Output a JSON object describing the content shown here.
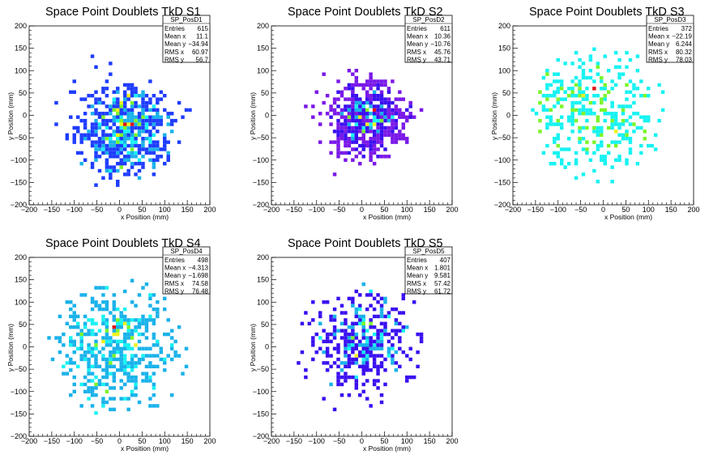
{
  "chart_data": [
    {
      "type": "heatmap",
      "title": "Space Point Doublets TkD S1",
      "xlabel": "x Position (mm)",
      "ylabel": "y Position (mm)",
      "xlim": [
        -200,
        200
      ],
      "ylim": [
        -200,
        200
      ],
      "xticks": [
        "−200",
        "−150",
        "−100",
        "−50",
        "0",
        "50",
        "100",
        "150",
        "200"
      ],
      "yticks": [
        "−200",
        "−150",
        "−100",
        "−50",
        "0",
        "50",
        "100",
        "150",
        "200"
      ],
      "stats": {
        "name": "SP_PosD1",
        "rows": [
          [
            "Entries",
            "615"
          ],
          [
            "Mean x",
            "11.1"
          ],
          [
            "Mean y",
            "−34.94"
          ],
          [
            "RMS x",
            "60.97"
          ],
          [
            "RMS y",
            "56.7"
          ]
        ]
      },
      "palette": "blue",
      "bins": {
        "n": 615,
        "mean_x": 11.1,
        "mean_y": -34.94,
        "rms_x": 60.97,
        "rms_y": 56.7,
        "radius": 160
      }
    },
    {
      "type": "heatmap",
      "title": "Space Point Doublets TkD S2",
      "xlabel": "x Position (mm)",
      "ylabel": "y Position (mm)",
      "xlim": [
        -200,
        200
      ],
      "ylim": [
        -200,
        200
      ],
      "xticks": [
        "−200",
        "−150",
        "−100",
        "−50",
        "0",
        "50",
        "100",
        "150",
        "200"
      ],
      "yticks": [
        "−200",
        "−150",
        "−100",
        "−50",
        "0",
        "50",
        "100",
        "150",
        "200"
      ],
      "stats": {
        "name": "SP_PosD2",
        "rows": [
          [
            "Entries",
            "611"
          ],
          [
            "Mean x",
            "10.36"
          ],
          [
            "Mean y",
            "−10.76"
          ],
          [
            "RMS x",
            "45.76"
          ],
          [
            "RMS y",
            "43.71"
          ]
        ]
      },
      "palette": "violet",
      "bins": {
        "n": 611,
        "mean_x": 10.36,
        "mean_y": -10.76,
        "rms_x": 45.76,
        "rms_y": 43.71,
        "radius": 160
      }
    },
    {
      "type": "heatmap",
      "title": "Space Point Doublets TkD S3",
      "xlabel": "x Position (mm)",
      "ylabel": "y Position (mm)",
      "xlim": [
        -200,
        200
      ],
      "ylim": [
        -200,
        200
      ],
      "xticks": [
        "−200",
        "−150",
        "−100",
        "−50",
        "0",
        "50",
        "100",
        "150",
        "200"
      ],
      "yticks": [
        "−200",
        "−150",
        "−100",
        "−50",
        "0",
        "50",
        "100",
        "150",
        "200"
      ],
      "stats": {
        "name": "SP_PosD3",
        "rows": [
          [
            "Entries",
            "372"
          ],
          [
            "Mean x",
            "−22.19"
          ],
          [
            "Mean y",
            "6.244"
          ],
          [
            "RMS x",
            "80.32"
          ],
          [
            "RMS y",
            "78.03"
          ]
        ]
      },
      "palette": "cyan",
      "bins": {
        "n": 372,
        "mean_x": -22.19,
        "mean_y": 6.244,
        "rms_x": 80.32,
        "rms_y": 78.03,
        "radius": 160
      }
    },
    {
      "type": "heatmap",
      "title": "Space Point Doublets TkD S4",
      "xlabel": "x Position (mm)",
      "ylabel": "y Position (mm)",
      "xlim": [
        -200,
        200
      ],
      "ylim": [
        -200,
        200
      ],
      "xticks": [
        "−200",
        "−150",
        "−100",
        "−50",
        "0",
        "50",
        "100",
        "150",
        "200"
      ],
      "yticks": [
        "−200",
        "−150",
        "−100",
        "−50",
        "0",
        "50",
        "100",
        "150",
        "200"
      ],
      "stats": {
        "name": "SP_PosD4",
        "rows": [
          [
            "Entries",
            "498"
          ],
          [
            "Mean x",
            "−4.313"
          ],
          [
            "Mean y",
            "−1.698"
          ],
          [
            "RMS x",
            "74.58"
          ],
          [
            "RMS y",
            "76.48"
          ]
        ]
      },
      "palette": "lightblue",
      "bins": {
        "n": 498,
        "mean_x": -4.313,
        "mean_y": -1.698,
        "rms_x": 74.58,
        "rms_y": 76.48,
        "radius": 160
      }
    },
    {
      "type": "heatmap",
      "title": "Space Point Doublets TkD S5",
      "xlabel": "x Position (mm)",
      "ylabel": "y Position (mm)",
      "xlim": [
        -200,
        200
      ],
      "ylim": [
        -200,
        200
      ],
      "xticks": [
        "−200",
        "−150",
        "−100",
        "−50",
        "0",
        "50",
        "100",
        "150",
        "200"
      ],
      "yticks": [
        "−200",
        "−150",
        "−100",
        "−50",
        "0",
        "50",
        "100",
        "150",
        "200"
      ],
      "stats": {
        "name": "SP_PosD5",
        "rows": [
          [
            "Entries",
            "407"
          ],
          [
            "Mean x",
            "1.801"
          ],
          [
            "Mean y",
            "9.581"
          ],
          [
            "RMS x",
            "57.42"
          ],
          [
            "RMS y",
            "61.72"
          ]
        ]
      },
      "palette": "indigo",
      "bins": {
        "n": 407,
        "mean_x": 1.801,
        "mean_y": 9.581,
        "rms_x": 57.42,
        "rms_y": 61.72,
        "radius": 160
      }
    }
  ],
  "colors": {
    "blue": "#1e3cff",
    "violet": "#7a18e8",
    "cyan": "#17f2f2",
    "lightblue": "#1ab2ea",
    "indigo": "#3a0ef0",
    "green": "#7cf52a",
    "yellow": "#f0f01c",
    "orange": "#f09a16",
    "red": "#e01010"
  }
}
